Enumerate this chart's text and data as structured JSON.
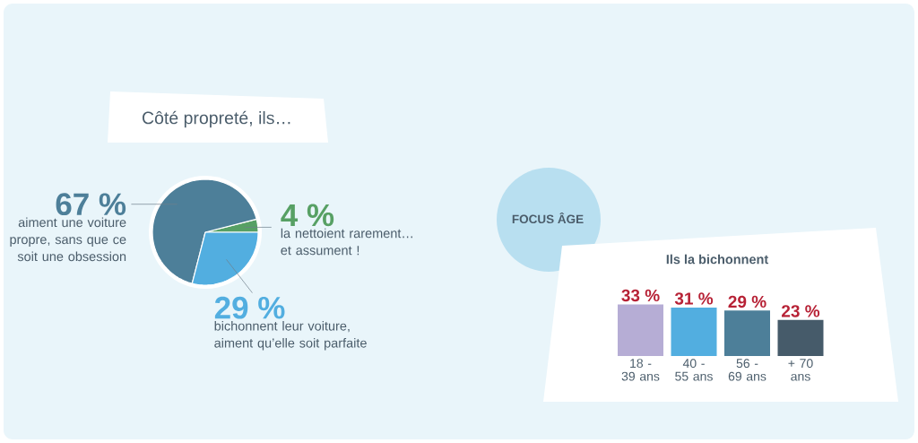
{
  "chart_data": [
    {
      "type": "pie",
      "title": "Côté propreté, ils…",
      "categories": [
        "la nettoient rarement… et assument !",
        "aiment une voiture propre, sans que ce soit une obsession",
        "bichonnent leur voiture, aiment qu’elle soit parfaite"
      ],
      "values": [
        4,
        67,
        29
      ],
      "colors": [
        "#57A064",
        "#4D7F99",
        "#52AEE0"
      ],
      "value_labels": [
        "4 %",
        "67 %",
        "29 %"
      ]
    },
    {
      "type": "bar",
      "title": "FOCUS ÂGE",
      "subtitle": "Ils la bichonnent",
      "categories": [
        "18 - 39 ans",
        "40 - 55 ans",
        "56 - 69 ans",
        "+ 70 ans"
      ],
      "values": [
        33,
        31,
        29,
        23
      ],
      "colors": [
        "#B6ADD5",
        "#52AEE0",
        "#4D7F99",
        "#465B6A"
      ],
      "value_labels": [
        "33 %",
        "31 %",
        "29 %",
        "23 %"
      ]
    }
  ]
}
